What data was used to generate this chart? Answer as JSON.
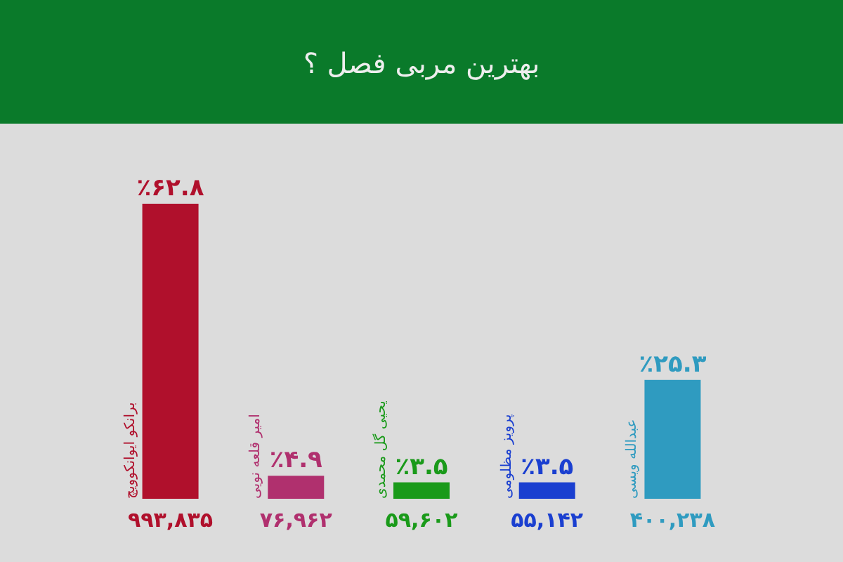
{
  "chart_data": {
    "type": "bar",
    "title": "بهترین مربی فصل ؟",
    "categories": [
      "برانکو ایوانکوویچ",
      "امیر قلعه نویی",
      "یحیی گل محمدی",
      "پرویز مظلومی",
      "عبدالله ویسی"
    ],
    "values": [
      62.8,
      4.9,
      3.5,
      3.5,
      25.3
    ],
    "colors": [
      "#b0102c",
      "#b0306e",
      "#1a9a1a",
      "#1a3fd0",
      "#2f9bc0"
    ],
    "value_labels": [
      "٪۶۲.۸",
      "٪۴.۹",
      "٪۳.۵",
      "٪۳.۵",
      "٪۲۵.۳"
    ],
    "annotations": [
      "۹۹۳,۸۳۵",
      "۷۶,۹۶۲",
      "۵۹,۶۰۲",
      "۵۵,۱۴۲",
      "۴۰۰,۲۳۸"
    ]
  }
}
